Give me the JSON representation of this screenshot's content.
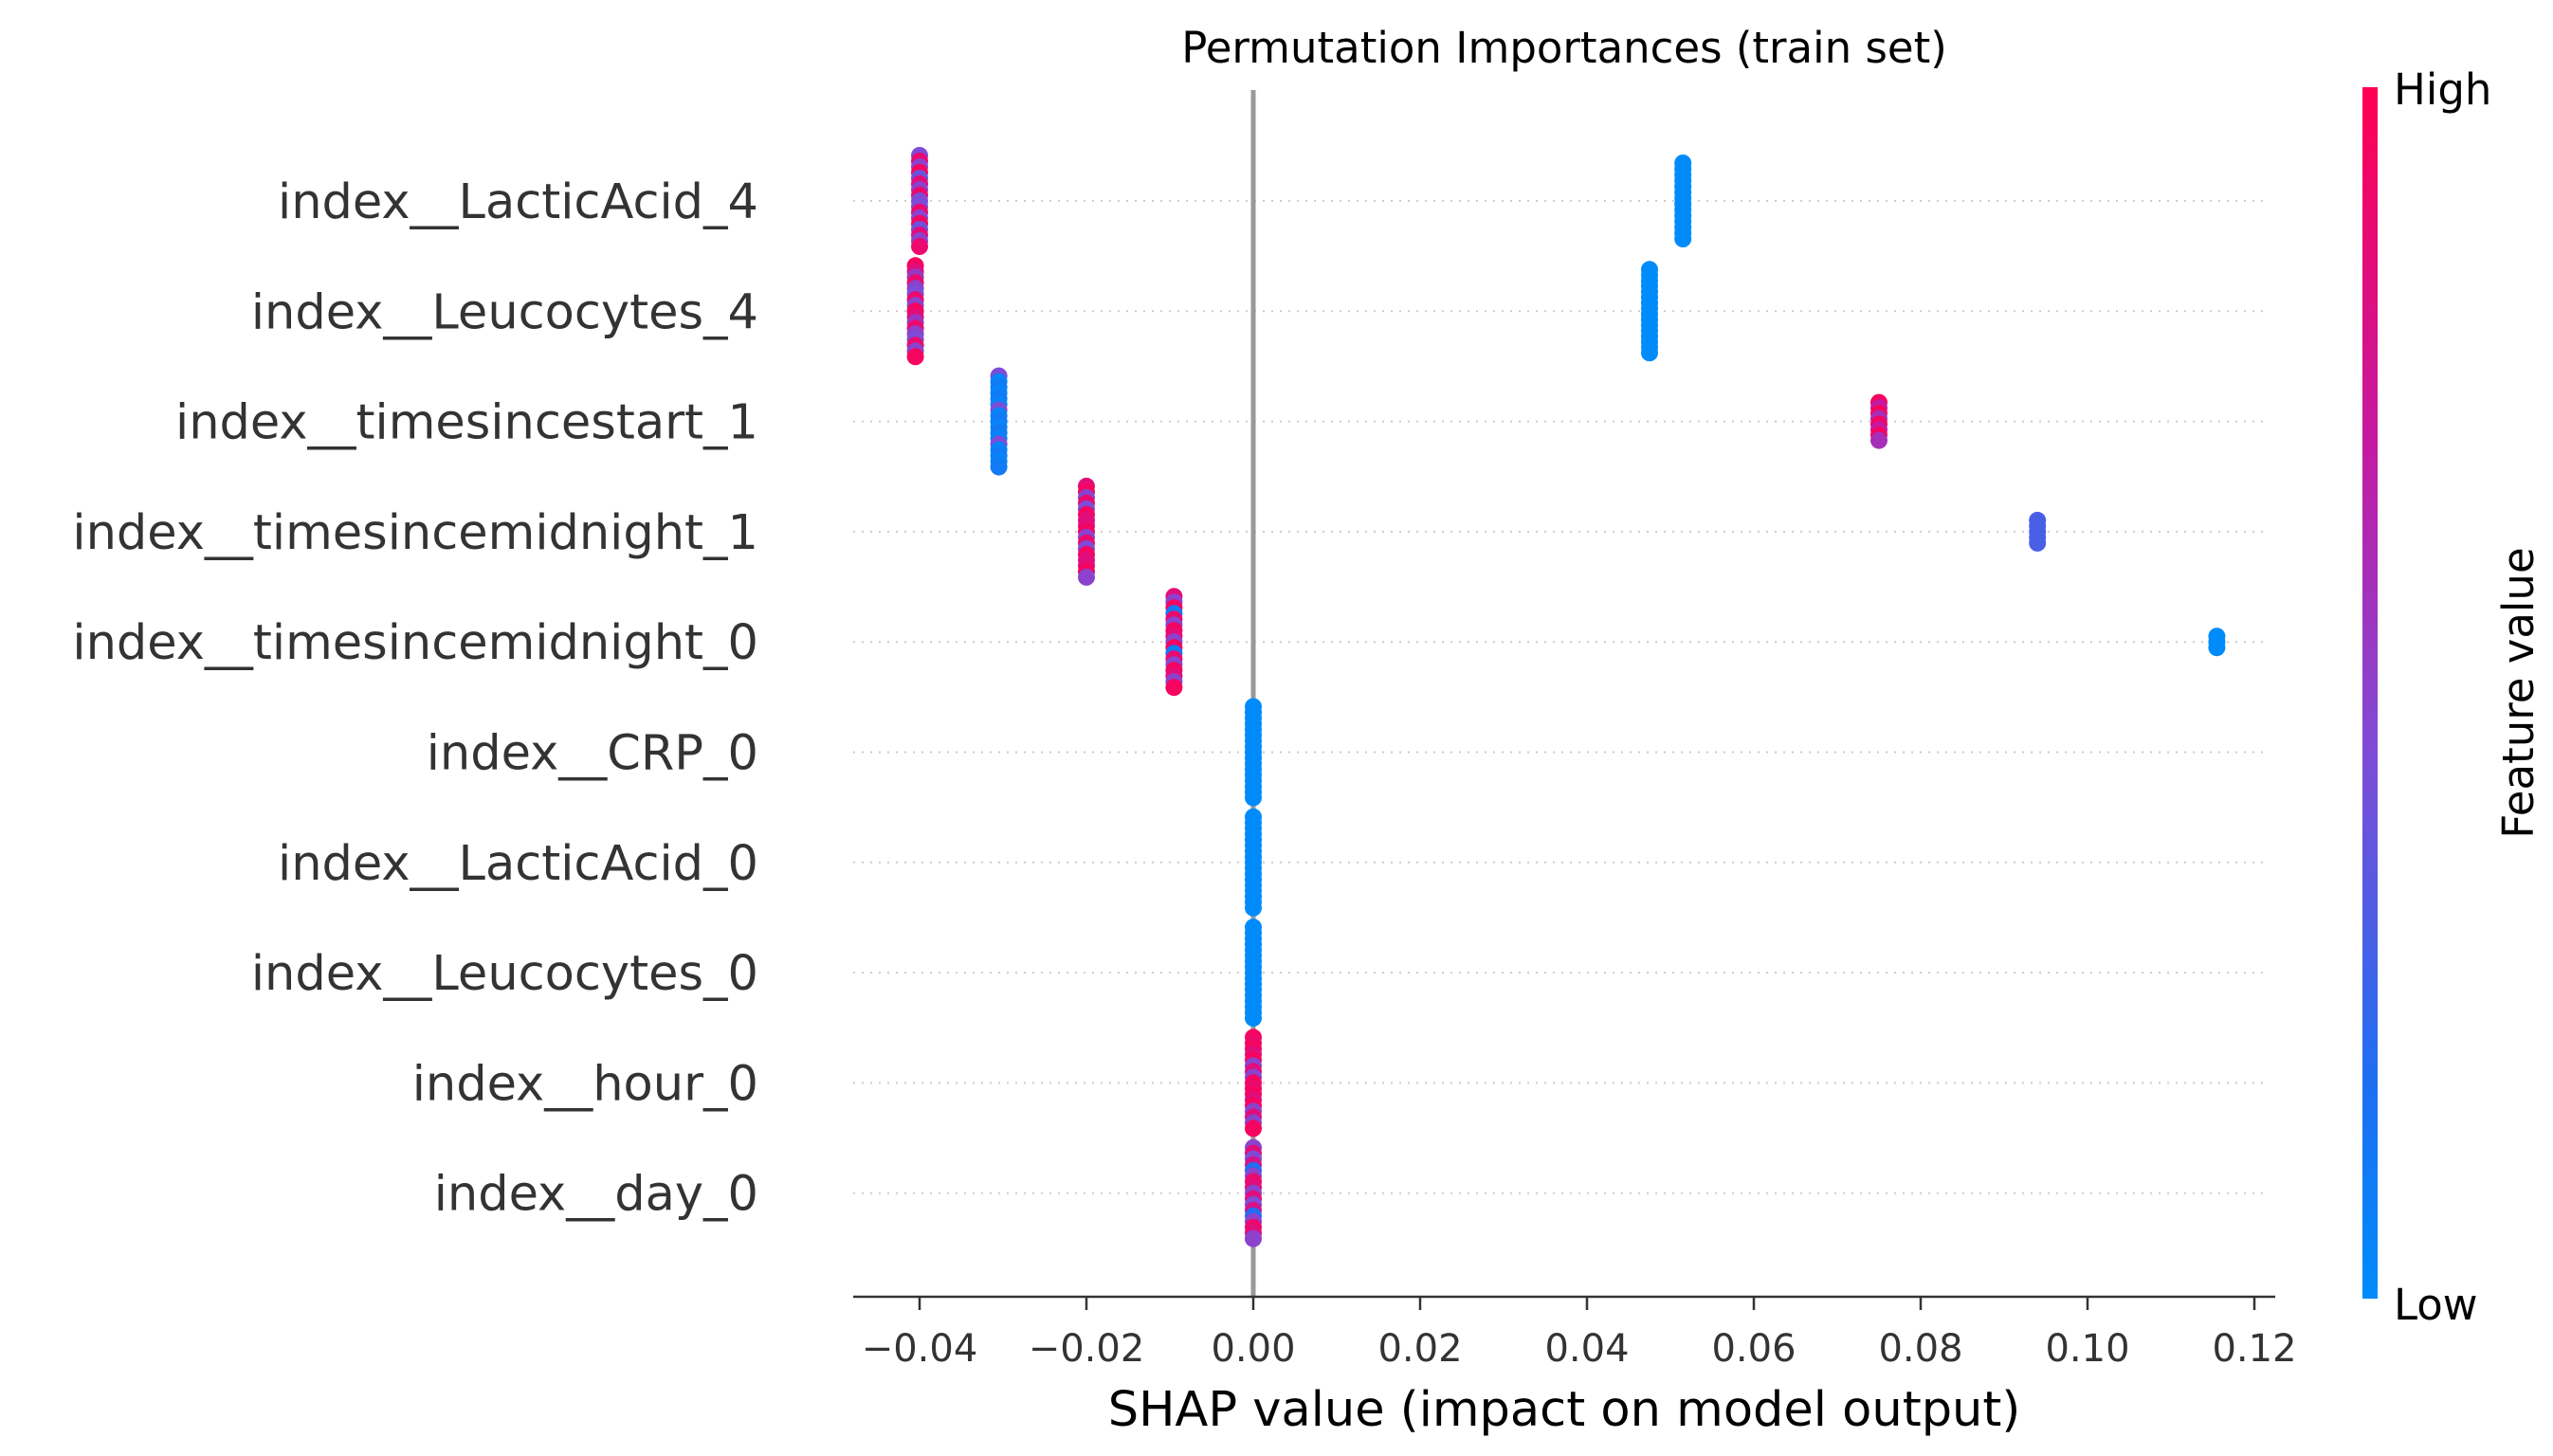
{
  "chart_data": {
    "type": "scatter",
    "subtype": "shap-beeswarm",
    "title": "Permutation Importances (train set)",
    "xlabel": "SHAP value (impact on model output)",
    "xlim": [
      -0.048,
      0.123
    ],
    "xticks": [
      -0.04,
      -0.02,
      0.0,
      0.02,
      0.04,
      0.06,
      0.08,
      0.1,
      0.12
    ],
    "xtick_labels": [
      "−0.04",
      "−0.02",
      "0.00",
      "0.02",
      "0.04",
      "0.06",
      "0.08",
      "0.10",
      "0.12"
    ],
    "zero_line": 0.0,
    "grid": "dotted horizontal per feature",
    "features": [
      {
        "label": "index__LacticAcid_4",
        "clusters": [
          {
            "x": -0.04,
            "spread": 24,
            "hue": [
              0.45,
              0.9,
              0.5,
              0.95,
              0.4,
              0.85,
              0.5,
              0.9,
              0.45
            ]
          },
          {
            "x": 0.0515,
            "spread": 20,
            "hue": [
              0.0
            ]
          }
        ]
      },
      {
        "label": "index__Leucocytes_4",
        "clusters": [
          {
            "x": -0.0405,
            "spread": 24,
            "hue": [
              0.95,
              0.85,
              0.55,
              0.9,
              0.5,
              0.45,
              0.9,
              0.5
            ]
          },
          {
            "x": 0.0475,
            "spread": 22,
            "hue": [
              0.0
            ]
          }
        ]
      },
      {
        "label": "index__timesincestart_1",
        "clusters": [
          {
            "x": -0.0305,
            "spread": 24,
            "hue": [
              0.45,
              0.05,
              0.1,
              0.05,
              0.1,
              0.05
            ]
          },
          {
            "x": 0.075,
            "spread": 10,
            "hue": [
              0.95,
              0.7,
              0.95,
              0.6
            ]
          }
        ]
      },
      {
        "label": "index__timesincemidnight_1",
        "clusters": [
          {
            "x": -0.02,
            "spread": 24,
            "hue": [
              0.85,
              0.95,
              0.5,
              0.9,
              0.45,
              0.95,
              0.85
            ]
          },
          {
            "x": 0.094,
            "spread": 6,
            "hue": [
              0.3
            ]
          }
        ]
      },
      {
        "label": "index__timesincemidnight_0",
        "clusters": [
          {
            "x": -0.0095,
            "spread": 24,
            "hue": [
              0.85,
              0.5,
              0.95,
              0.1,
              0.9,
              0.5,
              0.95
            ]
          },
          {
            "x": 0.1155,
            "spread": 3,
            "hue": [
              0.0
            ]
          }
        ]
      },
      {
        "label": "index__CRP_0",
        "clusters": [
          {
            "x": 0.0,
            "spread": 24,
            "hue": [
              0.0
            ]
          }
        ]
      },
      {
        "label": "index__LacticAcid_0",
        "clusters": [
          {
            "x": 0.0,
            "spread": 24,
            "hue": [
              0.0
            ]
          }
        ]
      },
      {
        "label": "index__Leucocytes_0",
        "clusters": [
          {
            "x": 0.0,
            "spread": 24,
            "hue": [
              0.0
            ]
          }
        ]
      },
      {
        "label": "index__hour_0",
        "clusters": [
          {
            "x": 0.0,
            "spread": 24,
            "hue": [
              0.95,
              0.9,
              0.95,
              0.85,
              0.95,
              0.5,
              0.85,
              0.5
            ]
          }
        ]
      },
      {
        "label": "index__day_0",
        "clusters": [
          {
            "x": 0.0,
            "spread": 24,
            "hue": [
              0.5,
              0.85,
              0.45,
              0.8,
              0.2,
              0.5,
              0.9,
              0.85
            ]
          }
        ]
      }
    ],
    "colorbar": {
      "title": "Feature value",
      "high_label": "High",
      "low_label": "Low",
      "low_color": "#008bfb",
      "high_color": "#ff0052"
    }
  }
}
